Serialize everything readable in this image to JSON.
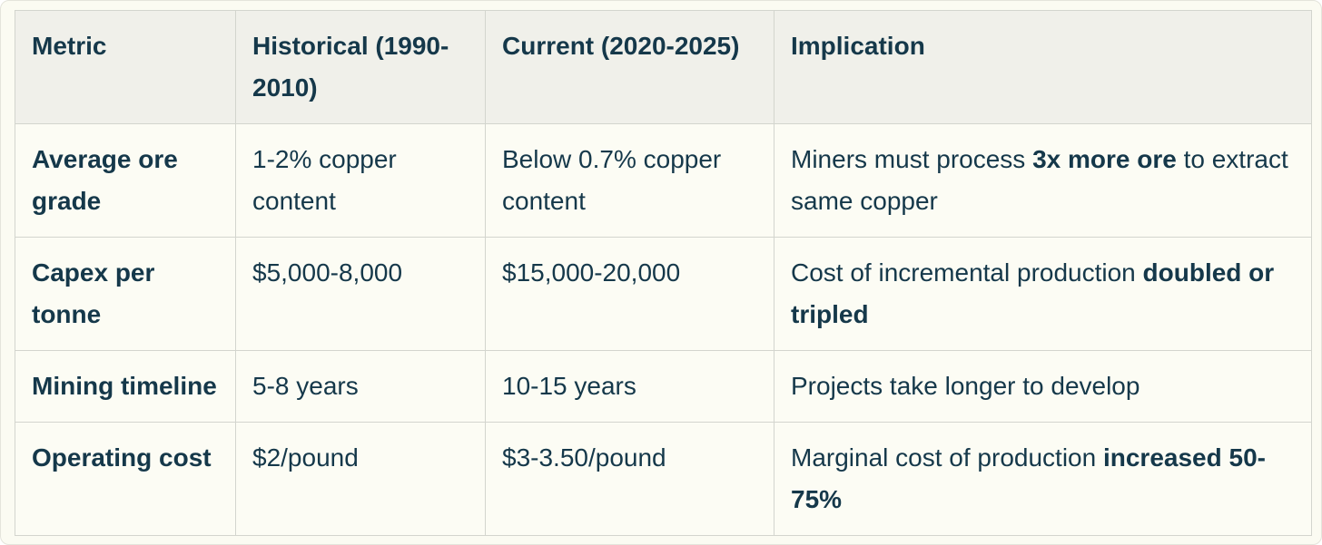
{
  "colors": {
    "page_background": "#FFFFFF",
    "card_background": "#FBFBF2",
    "card_edge": "#E4E4DB",
    "header_background": "#F0F0EA",
    "cell_background": "#FCFCF4",
    "grid_border": "#D3D5CE",
    "text": "#15384A"
  },
  "table": {
    "headers": [
      {
        "label": "Metric"
      },
      {
        "label": "Historical (1990-2010)"
      },
      {
        "label": "Current (2020-2025)"
      },
      {
        "label": "Implication"
      }
    ],
    "rows": [
      {
        "metric": "Average ore grade",
        "historical": "1-2% copper content",
        "current": "Below 0.7% copper content",
        "implication": [
          {
            "text": "Miners must process ",
            "bold": false
          },
          {
            "text": "3x more ore",
            "bold": true
          },
          {
            "text": " to extract same copper",
            "bold": false
          }
        ]
      },
      {
        "metric": "Capex per tonne",
        "historical": "$5,000-8,000",
        "current": "$15,000-20,000",
        "implication": [
          {
            "text": "Cost of incremental production ",
            "bold": false
          },
          {
            "text": "doubled or tripled",
            "bold": true
          }
        ]
      },
      {
        "metric": "Mining timeline",
        "historical": "5-8 years",
        "current": "10-15 years",
        "implication": [
          {
            "text": "Projects take longer to develop",
            "bold": false
          }
        ]
      },
      {
        "metric": "Operating cost",
        "historical": "$2/pound",
        "current": "$3-3.50/pound",
        "implication": [
          {
            "text": "Marginal cost of production ",
            "bold": false
          },
          {
            "text": "increased 50-75%",
            "bold": true
          }
        ]
      }
    ]
  }
}
